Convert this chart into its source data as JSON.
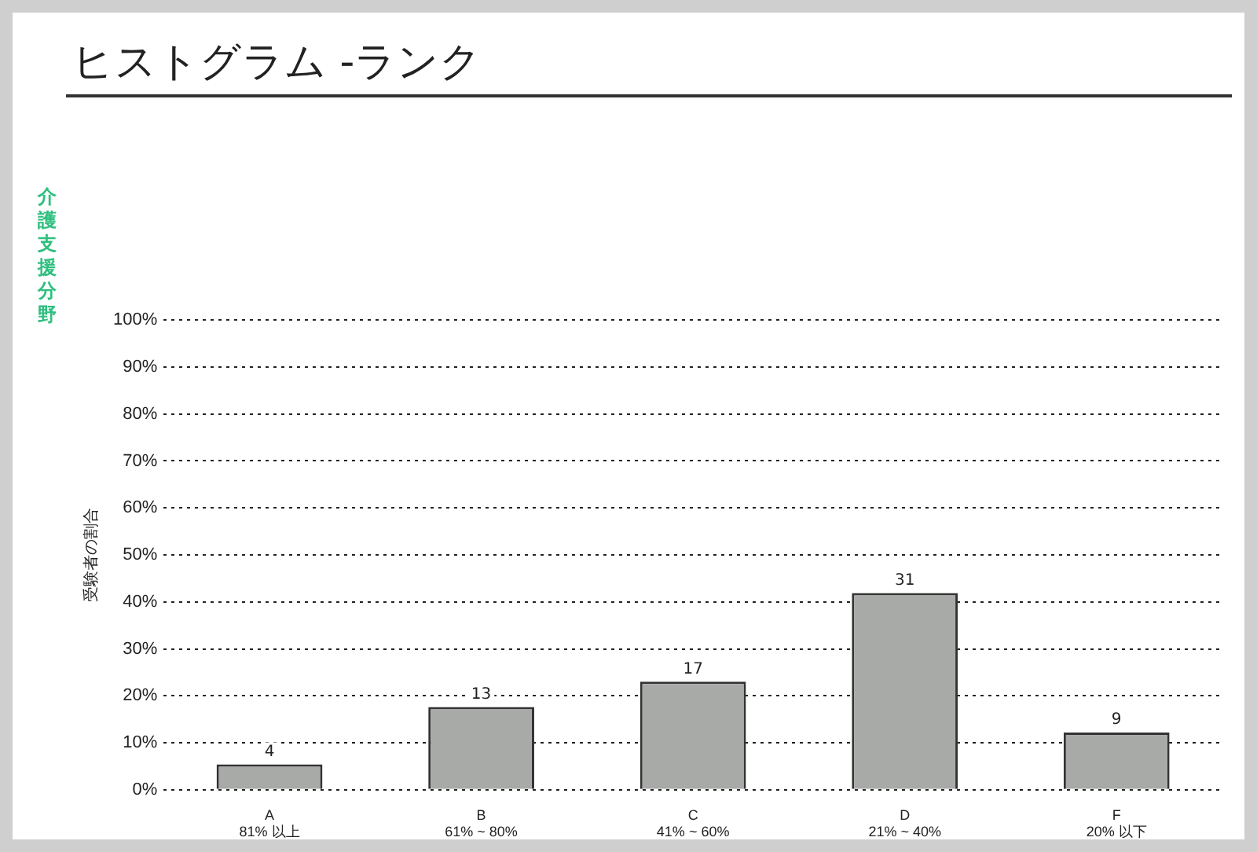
{
  "chart_data": {
    "type": "bar",
    "title": "ヒストグラム -ランク",
    "subtitle": "介護支援分野",
    "ylabel": "受験者の割合",
    "categories": [
      "A\n81% 以上",
      "B\n61% ~ 80%",
      "C\n41% ~ 60%",
      "D\n21% ~ 40%",
      "F\n20% 以下"
    ],
    "values": [
      5.4,
      17.6,
      23.0,
      41.9,
      12.2
    ],
    "annotations": [
      {
        "text": "4",
        "x": "A\n81% 以上",
        "y": 5.4
      },
      {
        "text": "13",
        "x": "B\n61% ~ 80%",
        "y": 17.6
      },
      {
        "text": "17",
        "x": "C\n41% ~ 60%",
        "y": 23.0
      },
      {
        "text": "31",
        "x": "D\n21% ~ 40%",
        "y": 41.9
      },
      {
        "text": "9",
        "x": "F\n20% 以下",
        "y": 12.2
      }
    ],
    "color": "#a8aaa8",
    "ylim": [
      0,
      100
    ],
    "yticks": [
      {
        "value": 0,
        "label": "0%"
      },
      {
        "value": 10,
        "label": "10%"
      },
      {
        "value": 20,
        "label": "20%"
      },
      {
        "value": 30,
        "label": "30%"
      },
      {
        "value": 40,
        "label": "40%"
      },
      {
        "value": 50,
        "label": "50%"
      },
      {
        "value": 60,
        "label": "60%"
      },
      {
        "value": 70,
        "label": "70%"
      },
      {
        "value": 80,
        "label": "80%"
      },
      {
        "value": 90,
        "label": "90%"
      },
      {
        "value": 100,
        "label": "100%"
      }
    ],
    "grid": "y",
    "legend": false
  }
}
